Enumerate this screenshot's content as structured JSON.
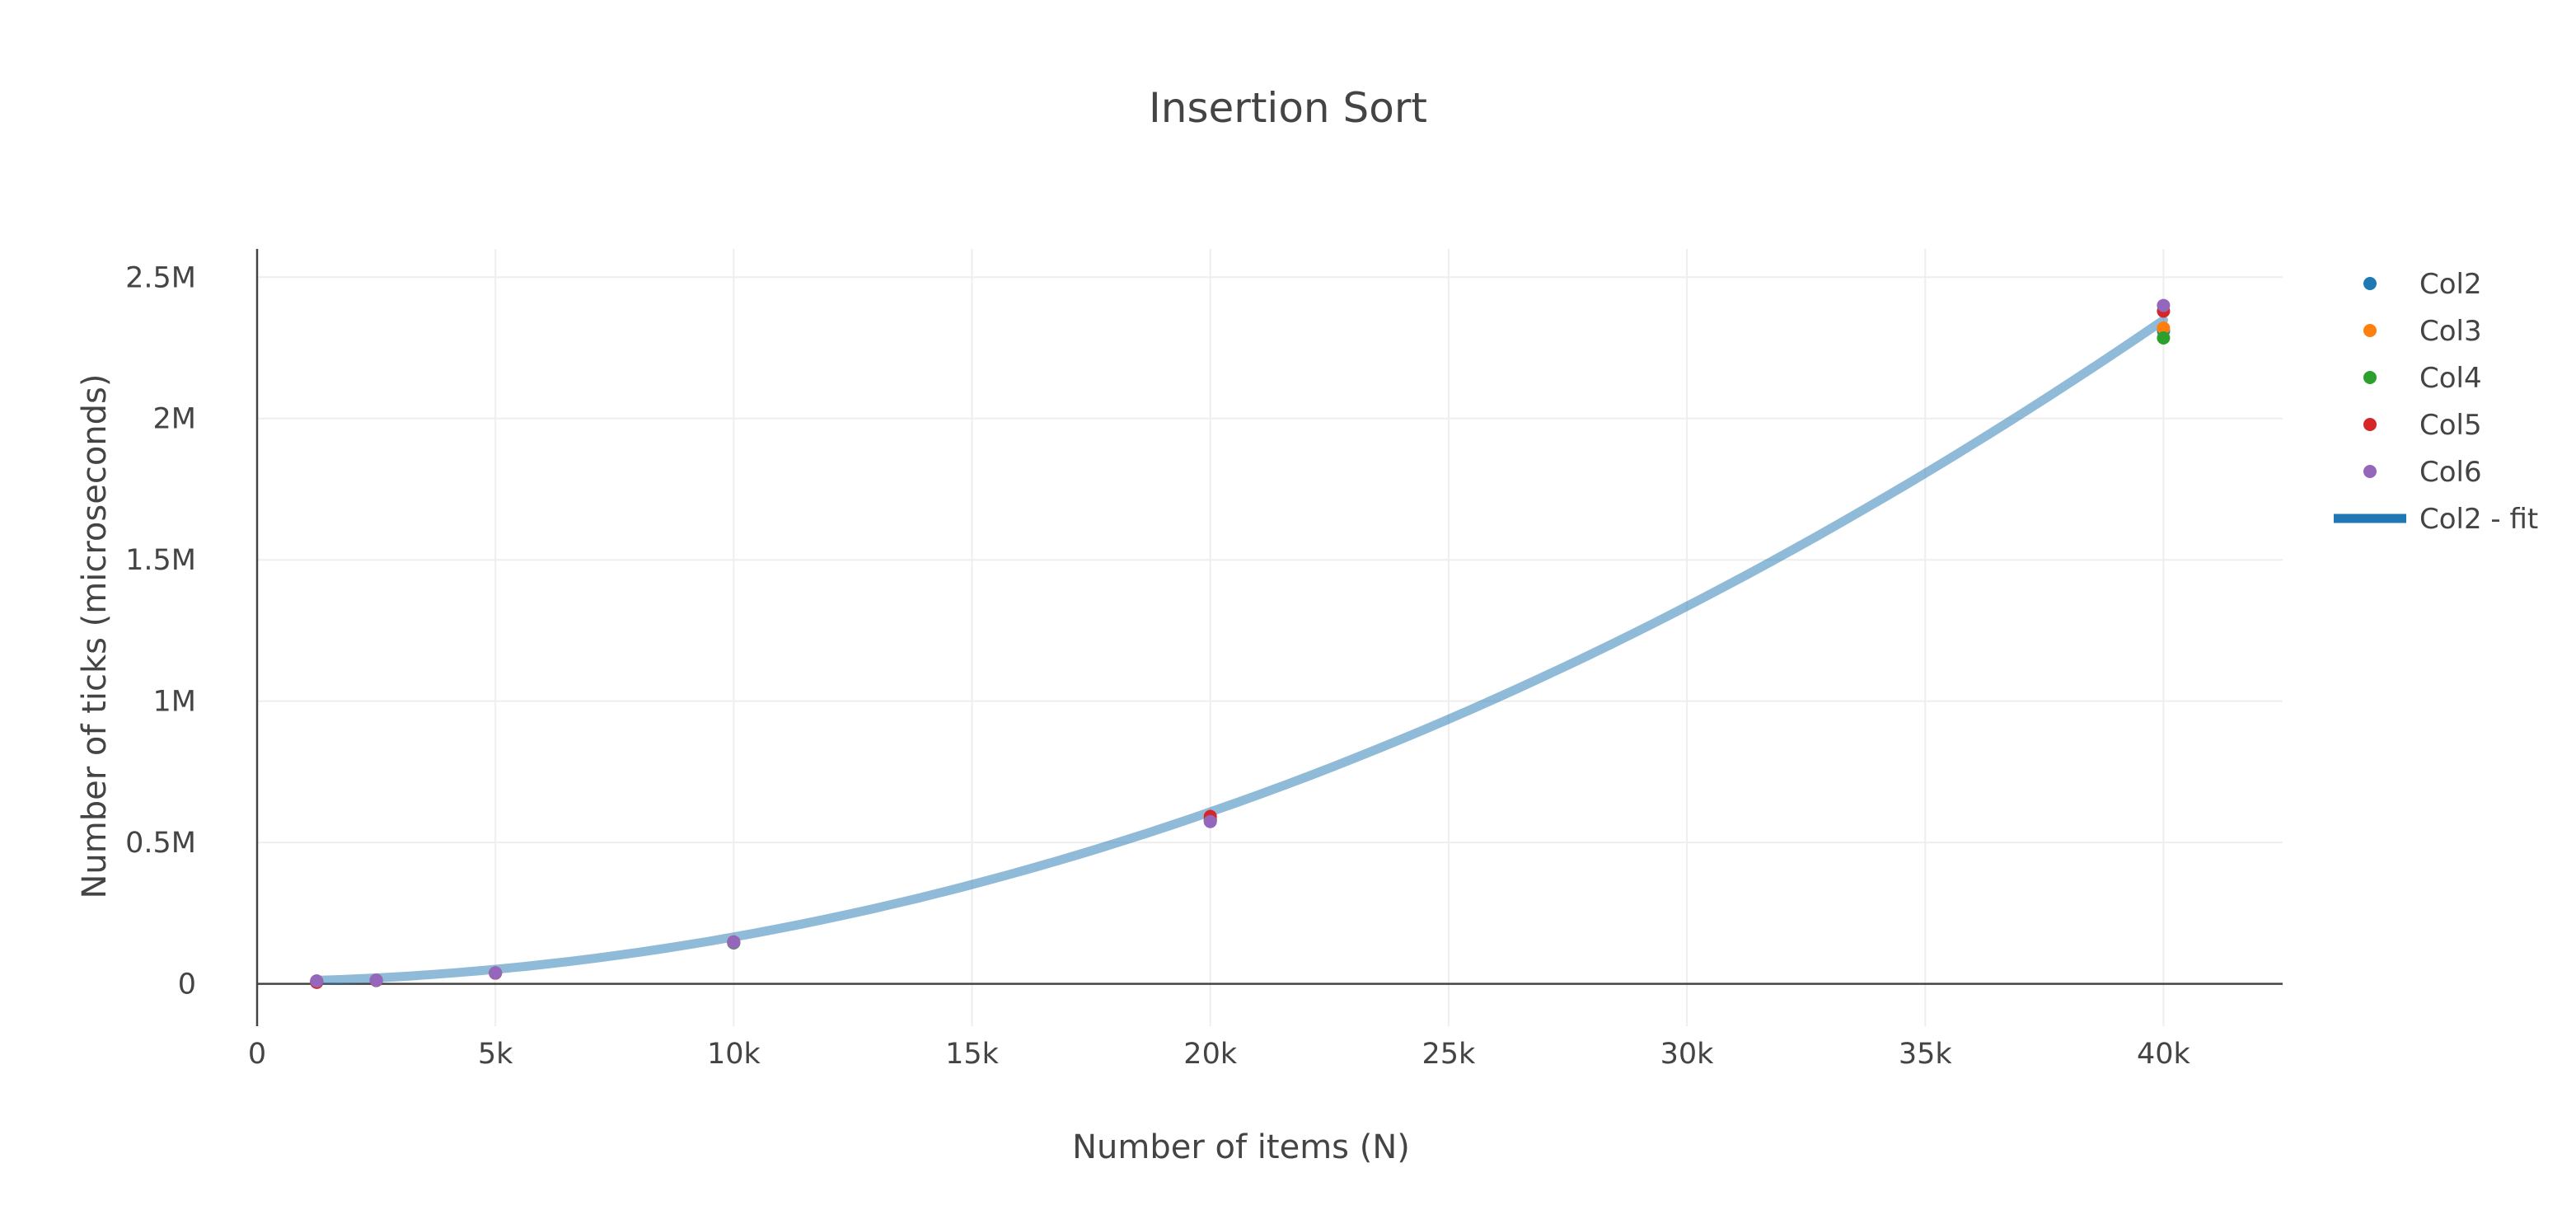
{
  "chart_data": {
    "type": "scatter",
    "title": "Insertion Sort",
    "xlabel": "Number of items (N)",
    "ylabel": "Number of ticks (microseconds)",
    "xlim": [
      0,
      42500
    ],
    "ylim": [
      -150000,
      2600000
    ],
    "x_ticks": [
      0,
      5000,
      10000,
      15000,
      20000,
      25000,
      30000,
      35000,
      40000
    ],
    "x_tick_labels": [
      "0",
      "5k",
      "10k",
      "15k",
      "20k",
      "25k",
      "30k",
      "35k",
      "40k"
    ],
    "y_ticks": [
      0,
      500000,
      1000000,
      1500000,
      2000000,
      2500000
    ],
    "y_tick_labels": [
      "0",
      "0.5M",
      "1M",
      "1.5M",
      "2M",
      "2.5M"
    ],
    "grid": true,
    "legend_position": "top-right outside",
    "x": [
      1250,
      2500,
      5000,
      10000,
      20000,
      40000
    ],
    "series": [
      {
        "name": "Col2",
        "kind": "markers",
        "color": "#1f77b4",
        "values": [
          9000,
          12000,
          38000,
          145000,
          580000,
          2310000
        ]
      },
      {
        "name": "Col3",
        "kind": "markers",
        "color": "#ff7f0e",
        "values": [
          9500,
          12500,
          39000,
          146000,
          582000,
          2320000
        ]
      },
      {
        "name": "Col4",
        "kind": "markers",
        "color": "#2ca02c",
        "values": [
          9000,
          12000,
          38500,
          145000,
          578000,
          2285000
        ]
      },
      {
        "name": "Col5",
        "kind": "markers",
        "color": "#d62728",
        "values": [
          5000,
          12000,
          38000,
          148000,
          592000,
          2380000
        ]
      },
      {
        "name": "Col6",
        "kind": "markers",
        "color": "#9467bd",
        "values": [
          10000,
          13000,
          39000,
          147000,
          574000,
          2400000
        ]
      }
    ],
    "fit": {
      "name": "Col2 - fit",
      "kind": "line",
      "color": "#1f77b4",
      "opacity": 0.5,
      "model": "quadratic",
      "coefficients": {
        "a": 0.001425,
        "b": 1.5,
        "c": 8000
      },
      "x_range": [
        1250,
        40000
      ]
    }
  }
}
